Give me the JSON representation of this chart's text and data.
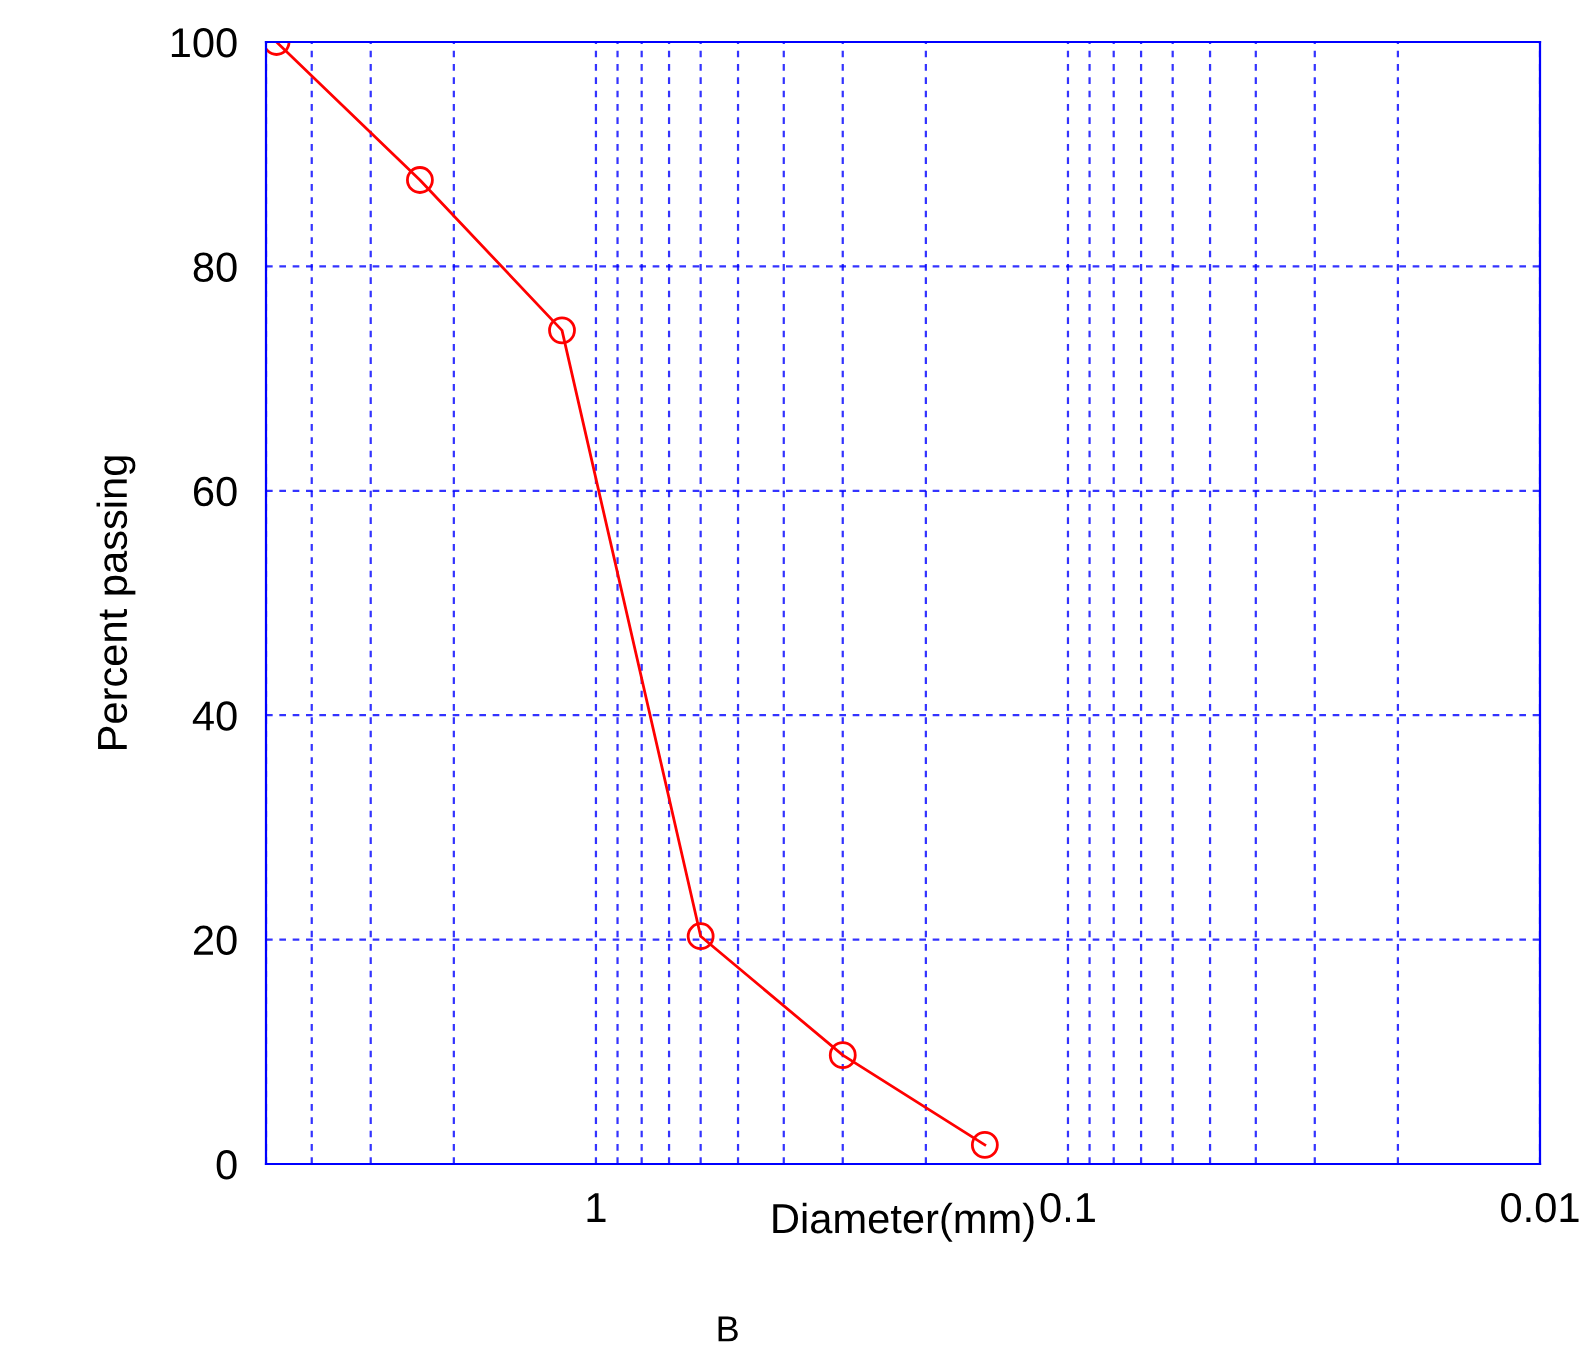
{
  "chart_data": {
    "type": "line",
    "xlabel": "Diameter(mm)",
    "ylabel": "Percent passing",
    "annotations": [
      "B"
    ],
    "x": [
      4.75,
      2.36,
      1.18,
      0.6,
      0.3,
      0.15
    ],
    "series": [
      {
        "color": "#ff0000",
        "values": [
          100,
          87.7,
          74.3,
          20.3,
          9.7,
          1.7
        ]
      }
    ],
    "log": "x",
    "xlim": [
      5,
      0.01
    ],
    "xticks": [
      {
        "value": 5,
        "label": null
      },
      {
        "value": 4,
        "label": null
      },
      {
        "value": 3,
        "label": null
      },
      {
        "value": 2,
        "label": null
      },
      1,
      {
        "value": 0.9,
        "label": null
      },
      {
        "value": 0.8,
        "label": null
      },
      {
        "value": 0.7,
        "label": null
      },
      {
        "value": 0.6,
        "label": null
      },
      {
        "value": 0.5,
        "label": null
      },
      {
        "value": 0.4,
        "label": null
      },
      {
        "value": 0.3,
        "label": null
      },
      {
        "value": 0.2,
        "label": null
      },
      0.1,
      {
        "value": 0.09,
        "label": null
      },
      {
        "value": 0.08,
        "label": null
      },
      {
        "value": 0.07,
        "label": null
      },
      {
        "value": 0.06,
        "label": null
      },
      {
        "value": 0.05,
        "label": null
      },
      {
        "value": 0.04,
        "label": null
      },
      {
        "value": 0.03,
        "label": null
      },
      {
        "value": 0.02,
        "label": null
      },
      0.01
    ],
    "ylim": [
      0,
      100
    ],
    "yticks": [
      0,
      20,
      40,
      60,
      80,
      100
    ],
    "grid": true,
    "marker": "circle",
    "line_style": "solid"
  }
}
